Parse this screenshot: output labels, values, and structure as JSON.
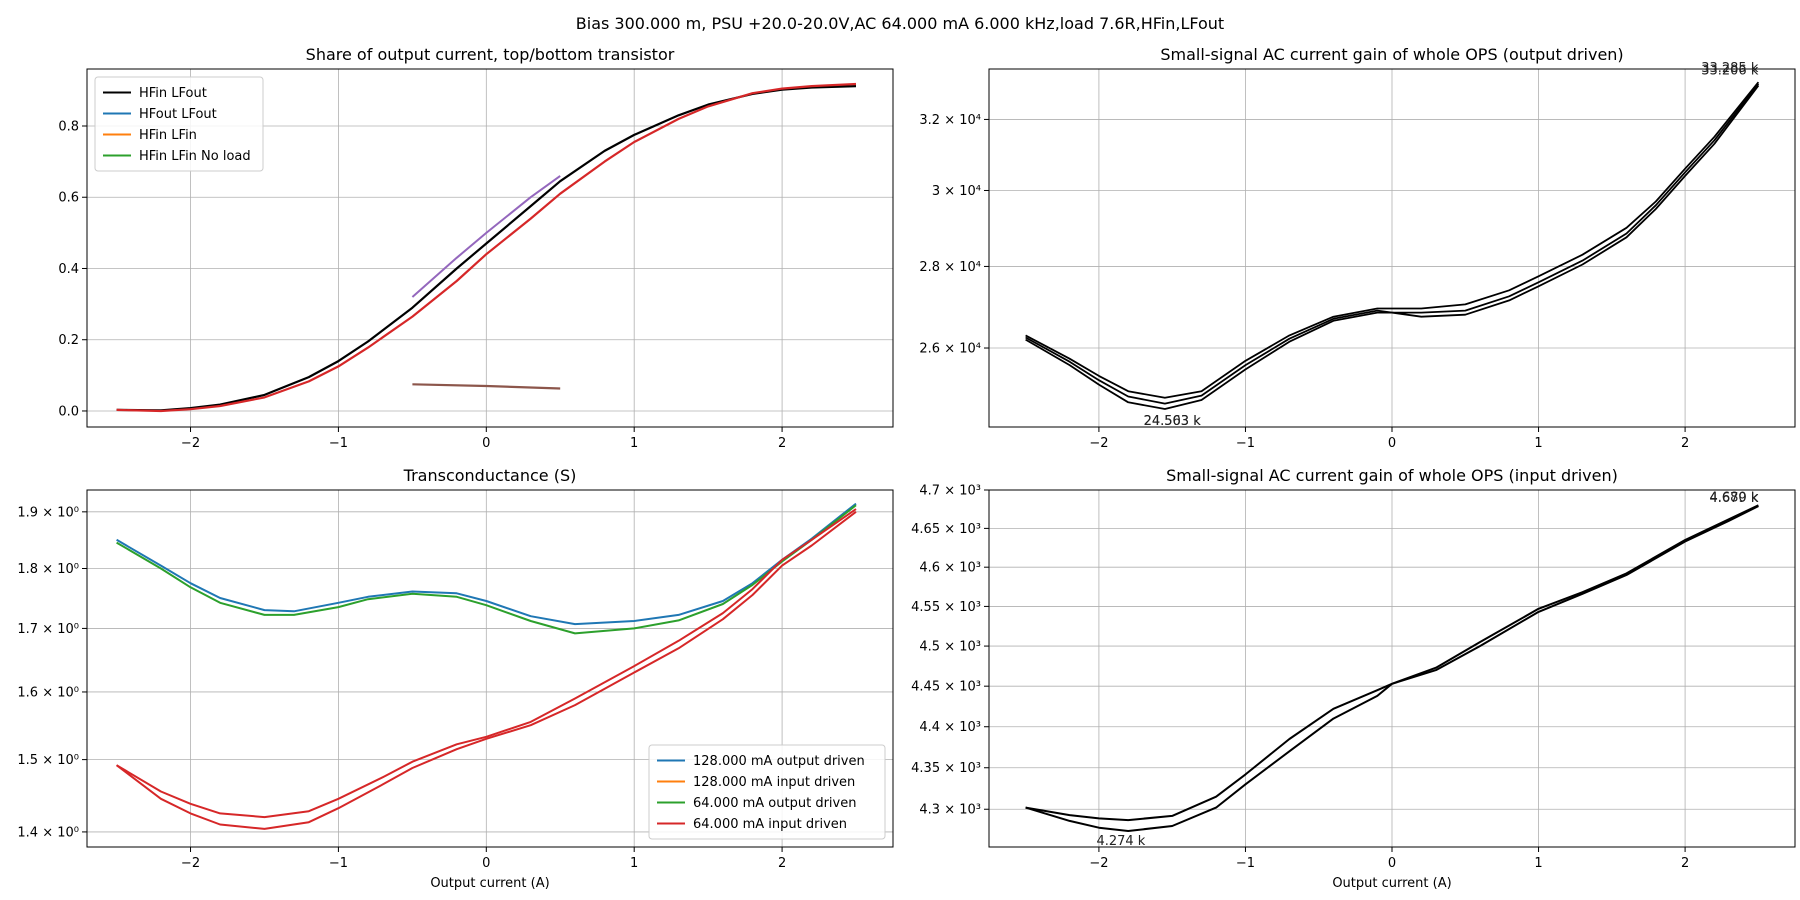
{
  "suptitle": "Bias 300.000 m, PSU +20.0-20.0V,AC 64.000 mA 6.000 kHz,load 7.6R,HFin,LFout",
  "chart_data": [
    {
      "id": "share",
      "type": "line",
      "title": "Share of output current, top/bottom transistor",
      "xlabel": "",
      "ylabel": "",
      "xlim": [
        -2.7,
        2.75
      ],
      "ylim": [
        -0.045,
        0.96
      ],
      "yscale": "linear",
      "xticks": [
        -2,
        -1,
        0,
        1,
        2
      ],
      "xtick_labels": [
        "−2",
        "−1",
        "0",
        "1",
        "2"
      ],
      "yticks": [
        0.0,
        0.2,
        0.4,
        0.6,
        0.8
      ],
      "ytick_labels": [
        "0.0",
        "0.2",
        "0.4",
        "0.6",
        "0.8"
      ],
      "grid": true,
      "legend": {
        "placement": "upper-left",
        "entries": [
          {
            "label": "HFin LFout",
            "color": "#000000"
          },
          {
            "label": "HFout LFout",
            "color": "#1f77b4"
          },
          {
            "label": "HFin LFin",
            "color": "#ff7f0e"
          },
          {
            "label": "HFin LFin No load",
            "color": "#2ca02c"
          }
        ]
      },
      "series": [
        {
          "color": "#000000",
          "width": 2.2,
          "x": [
            -2.5,
            -2.2,
            -2.0,
            -1.8,
            -1.5,
            -1.2,
            -1.0,
            -0.8,
            -0.5,
            -0.2,
            0,
            0.3,
            0.5,
            0.8,
            1.0,
            1.3,
            1.5,
            1.8,
            2.0,
            2.2,
            2.5
          ],
          "y": [
            0.003,
            0.002,
            0.008,
            0.018,
            0.045,
            0.095,
            0.14,
            0.195,
            0.29,
            0.4,
            0.47,
            0.575,
            0.645,
            0.73,
            0.775,
            0.83,
            0.86,
            0.89,
            0.902,
            0.908,
            0.912
          ]
        },
        {
          "color": "#d62728",
          "width": 2.2,
          "x": [
            -2.5,
            -2.2,
            -2.0,
            -1.8,
            -1.5,
            -1.2,
            -1.0,
            -0.8,
            -0.5,
            -0.2,
            0,
            0.3,
            0.5,
            0.8,
            1.0,
            1.3,
            1.5,
            1.8,
            2.0,
            2.2,
            2.5
          ],
          "y": [
            0.003,
            0.0,
            0.005,
            0.014,
            0.038,
            0.083,
            0.125,
            0.178,
            0.265,
            0.365,
            0.44,
            0.54,
            0.61,
            0.7,
            0.755,
            0.82,
            0.855,
            0.892,
            0.905,
            0.912,
            0.918
          ]
        },
        {
          "color": "#9467bd",
          "width": 2.0,
          "x": [
            -0.5,
            -0.2,
            0,
            0.3,
            0.5
          ],
          "y": [
            0.32,
            0.43,
            0.5,
            0.6,
            0.66
          ]
        },
        {
          "color": "#8c564b",
          "width": 2.2,
          "x": [
            -0.5,
            0,
            0.5
          ],
          "y": [
            0.075,
            0.07,
            0.063
          ]
        }
      ]
    },
    {
      "id": "gain-output",
      "type": "line",
      "title": "Small-signal AC current gain of whole OPS (output driven)",
      "xlabel": "",
      "ylabel": "",
      "xlim": [
        -2.75,
        2.75
      ],
      "ylim": [
        24200,
        33500
      ],
      "yscale": "log",
      "xticks": [
        -2,
        -1,
        0,
        1,
        2
      ],
      "xtick_labels": [
        "−2",
        "−1",
        "0",
        "1",
        "2"
      ],
      "yticks": [
        26000,
        28000,
        30000,
        32000
      ],
      "ytick_labels": [
        "2.6 × 10⁴",
        "2.8 × 10⁴",
        "3 × 10⁴",
        "3.2 × 10⁴"
      ],
      "grid": true,
      "annotations": [
        {
          "text": "33.285 k",
          "x": 2.5,
          "y": 33285,
          "anchor": "end"
        },
        {
          "text": "33.206 k",
          "x": 2.5,
          "y": 33206,
          "anchor": "end"
        },
        {
          "text": "24.563 k",
          "x": -1.5,
          "y": 24563,
          "anchor": "middle"
        },
        {
          "text": "24.503 k",
          "x": -1.5,
          "y": 24503,
          "anchor": "middle"
        }
      ],
      "series": [
        {
          "color": "#000000",
          "width": 1.8,
          "x": [
            -2.5,
            -2.2,
            -2.0,
            -1.8,
            -1.55,
            -1.3,
            -1.0,
            -0.7,
            -0.4,
            -0.1,
            0.2,
            0.5,
            0.8,
            1.0,
            1.3,
            1.6,
            1.8,
            2.0,
            2.2,
            2.5
          ],
          "y": [
            26300,
            25750,
            25350,
            25000,
            24850,
            25000,
            25700,
            26300,
            26750,
            26950,
            26950,
            27050,
            27400,
            27750,
            28300,
            29000,
            29700,
            30600,
            31500,
            33100
          ]
        },
        {
          "color": "#000000",
          "width": 1.8,
          "x": [
            -2.5,
            -2.2,
            -2.0,
            -1.8,
            -1.55,
            -1.3,
            -1.0,
            -0.7,
            -0.4,
            -0.1,
            0.2,
            0.5,
            0.8,
            1.0,
            1.3,
            1.6,
            1.8,
            2.0,
            2.2,
            2.5
          ],
          "y": [
            26200,
            25600,
            25150,
            24750,
            24600,
            24800,
            25500,
            26150,
            26650,
            26850,
            26850,
            26900,
            27250,
            27600,
            28150,
            28850,
            29600,
            30500,
            31400,
            33050
          ]
        },
        {
          "color": "#000000",
          "width": 1.8,
          "x": [
            -2.5,
            -2.2,
            -2.0,
            -1.8,
            -1.55,
            -1.3,
            -1.0,
            -0.7,
            -0.4,
            -0.1,
            0.2,
            0.5,
            0.8,
            1.0,
            1.3,
            1.6,
            1.8,
            2.0,
            2.2,
            2.5
          ],
          "y": [
            26250,
            25680,
            25250,
            24880,
            24720,
            24900,
            25600,
            26220,
            26700,
            26900,
            26750,
            26800,
            27150,
            27500,
            28050,
            28750,
            29500,
            30400,
            31300,
            33000
          ]
        }
      ]
    },
    {
      "id": "transconductance",
      "type": "line",
      "title": "Transconductance (S)",
      "xlabel": "Output current (A)",
      "ylabel": "",
      "xlim": [
        -2.7,
        2.75
      ],
      "ylim": [
        1.38,
        1.94
      ],
      "yscale": "log",
      "xticks": [
        -2,
        -1,
        0,
        1,
        2
      ],
      "xtick_labels": [
        "−2",
        "−1",
        "0",
        "1",
        "2"
      ],
      "yticks": [
        1.4,
        1.5,
        1.6,
        1.7,
        1.8,
        1.9
      ],
      "ytick_labels": [
        "1.4 × 10⁰",
        "1.5 × 10⁰",
        "1.6 × 10⁰",
        "1.7 × 10⁰",
        "1.8 × 10⁰",
        "1.9 × 10⁰"
      ],
      "grid": true,
      "legend": {
        "placement": "lower-right",
        "entries": [
          {
            "label": "128.000 mA output driven",
            "color": "#1f77b4"
          },
          {
            "label": "128.000 mA input driven",
            "color": "#ff7f0e"
          },
          {
            "label": "64.000 mA output driven",
            "color": "#2ca02c"
          },
          {
            "label": "64.000 mA input driven",
            "color": "#d62728"
          }
        ]
      },
      "series": [
        {
          "name": "128.000 mA output driven",
          "color": "#1f77b4",
          "width": 2.0,
          "x": [
            -2.5,
            -2.2,
            -2.0,
            -1.8,
            -1.5,
            -1.3,
            -1.0,
            -0.8,
            -0.5,
            -0.2,
            0,
            0.3,
            0.6,
            1.0,
            1.3,
            1.6,
            1.8,
            2.0,
            2.2,
            2.5
          ],
          "y": [
            1.85,
            1.805,
            1.775,
            1.75,
            1.73,
            1.728,
            1.742,
            1.752,
            1.761,
            1.758,
            1.745,
            1.72,
            1.707,
            1.712,
            1.722,
            1.745,
            1.775,
            1.815,
            1.852,
            1.915
          ]
        },
        {
          "name": "64.000 mA output driven",
          "color": "#2ca02c",
          "width": 2.0,
          "x": [
            -2.5,
            -2.2,
            -2.0,
            -1.8,
            -1.5,
            -1.3,
            -1.0,
            -0.8,
            -0.5,
            -0.2,
            0,
            0.3,
            0.6,
            1.0,
            1.3,
            1.6,
            1.8,
            2.0,
            2.2,
            2.5
          ],
          "y": [
            1.845,
            1.8,
            1.768,
            1.742,
            1.722,
            1.722,
            1.735,
            1.748,
            1.757,
            1.752,
            1.738,
            1.712,
            1.692,
            1.7,
            1.713,
            1.74,
            1.772,
            1.812,
            1.85,
            1.912
          ]
        },
        {
          "name": "64.000 mA input driven",
          "color": "#d62728",
          "width": 2.0,
          "x": [
            -2.5,
            -2.2,
            -2.0,
            -1.8,
            -1.5,
            -1.2,
            -1.0,
            -0.7,
            -0.5,
            -0.2,
            0,
            0.3,
            0.6,
            1.0,
            1.3,
            1.6,
            1.8,
            2.0,
            2.2,
            2.5
          ],
          "y": [
            1.492,
            1.455,
            1.438,
            1.425,
            1.42,
            1.428,
            1.445,
            1.475,
            1.497,
            1.522,
            1.533,
            1.555,
            1.59,
            1.64,
            1.68,
            1.725,
            1.765,
            1.815,
            1.85,
            1.905
          ]
        },
        {
          "name": "64.000 mA input driven",
          "color": "#d62728",
          "width": 2.0,
          "x": [
            -2.5,
            -2.2,
            -2.0,
            -1.8,
            -1.5,
            -1.2,
            -1.0,
            -0.7,
            -0.5,
            -0.2,
            0,
            0.3,
            0.6,
            1.0,
            1.3,
            1.6,
            1.8,
            2.0,
            2.2,
            2.5
          ],
          "y": [
            1.492,
            1.445,
            1.425,
            1.41,
            1.404,
            1.413,
            1.432,
            1.465,
            1.488,
            1.515,
            1.53,
            1.55,
            1.58,
            1.63,
            1.668,
            1.715,
            1.755,
            1.805,
            1.84,
            1.9
          ]
        }
      ]
    },
    {
      "id": "gain-input",
      "type": "line",
      "title": "Small-signal AC current gain of whole OPS (input driven)",
      "xlabel": "Output current (A)",
      "ylabel": "",
      "xlim": [
        -2.75,
        2.75
      ],
      "ylim": [
        4255,
        4700
      ],
      "yscale": "log",
      "xticks": [
        -2,
        -1,
        0,
        1,
        2
      ],
      "xtick_labels": [
        "−2",
        "−1",
        "0",
        "1",
        "2"
      ],
      "yticks": [
        4300,
        4350,
        4400,
        4450,
        4500,
        4550,
        4600,
        4650,
        4700
      ],
      "ytick_labels": [
        "4.3 × 10³",
        "4.35 × 10³",
        "4.4 × 10³",
        "4.45 × 10³",
        "4.5 × 10³",
        "4.55 × 10³",
        "4.6 × 10³",
        "4.65 × 10³",
        "4.7 × 10³"
      ],
      "grid": true,
      "annotations": [
        {
          "text": "4.679 k",
          "x": 2.5,
          "y": 4679,
          "anchor": "end"
        },
        {
          "text": "4.680 k",
          "x": 2.5,
          "y": 4680,
          "anchor": "end"
        },
        {
          "text": "4.274 k",
          "x": -1.85,
          "y": 4274,
          "anchor": "middle"
        }
      ],
      "series": [
        {
          "color": "#000000",
          "width": 2.0,
          "x": [
            -2.5,
            -2.2,
            -2.0,
            -1.8,
            -1.5,
            -1.2,
            -1.0,
            -0.7,
            -0.4,
            -0.1,
            0,
            0.3,
            0.6,
            1.0,
            1.3,
            1.6,
            2.0,
            2.3,
            2.5
          ],
          "y": [
            4302,
            4293,
            4289,
            4287,
            4292,
            4315,
            4342,
            4385,
            4422,
            4445,
            4453,
            4473,
            4505,
            4547,
            4568,
            4592,
            4635,
            4662,
            4680
          ]
        },
        {
          "color": "#000000",
          "width": 2.0,
          "x": [
            -2.5,
            -2.2,
            -2.0,
            -1.8,
            -1.5,
            -1.2,
            -1.0,
            -0.7,
            -0.4,
            -0.1,
            0,
            0.3,
            0.6,
            1.0,
            1.3,
            1.6,
            2.0,
            2.3,
            2.5
          ],
          "y": [
            4302,
            4286,
            4278,
            4274,
            4280,
            4302,
            4330,
            4370,
            4410,
            4438,
            4453,
            4470,
            4500,
            4543,
            4566,
            4590,
            4633,
            4660,
            4679
          ]
        }
      ]
    }
  ]
}
